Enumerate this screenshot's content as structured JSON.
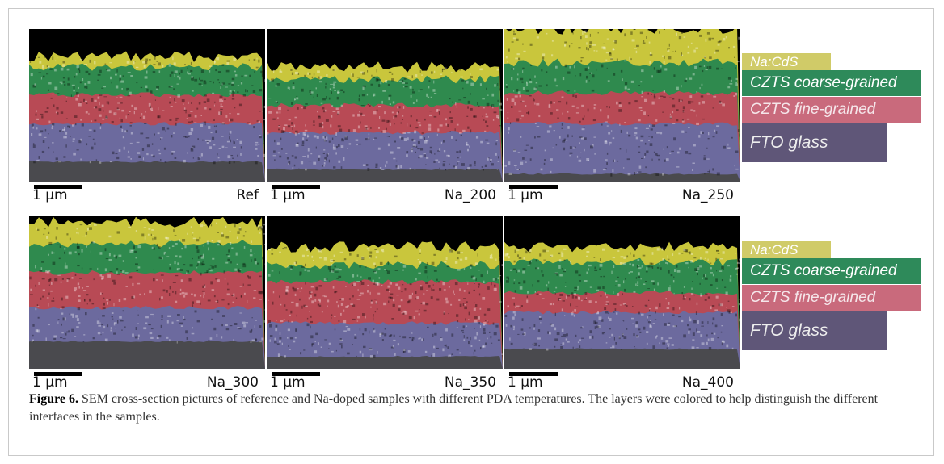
{
  "figure": {
    "panels_row1": [
      {
        "sample": "Ref",
        "scale": "1 µm"
      },
      {
        "sample": "Na_200",
        "scale": "1 µm"
      },
      {
        "sample": "Na_250",
        "scale": "1 µm"
      }
    ],
    "panels_row2": [
      {
        "sample": "Na_300",
        "scale": "1 µm"
      },
      {
        "sample": "Na_350",
        "scale": "1 µm"
      },
      {
        "sample": "Na_400",
        "scale": "1 µm"
      }
    ],
    "legend": [
      {
        "label": "Na:CdS",
        "color": "#c8c24e"
      },
      {
        "label": "CZTS coarse-grained",
        "color": "#2e8a5a"
      },
      {
        "label": "CZTS fine-grained",
        "color": "#c96a7c"
      },
      {
        "label": "FTO glass",
        "color": "#5f5678"
      }
    ],
    "layer_colors": {
      "cds": "#c9c63c",
      "coarse": "#2f8a4e",
      "fine": "#b84a55",
      "fto": "#6c6a9e",
      "glass": "#4a4a4e"
    }
  },
  "caption": {
    "label": "Figure 6.",
    "text": "SEM cross-section pictures of reference and Na-doped samples with different PDA temperatures. The layers were colored to help distinguish the different interfaces in the samples."
  }
}
